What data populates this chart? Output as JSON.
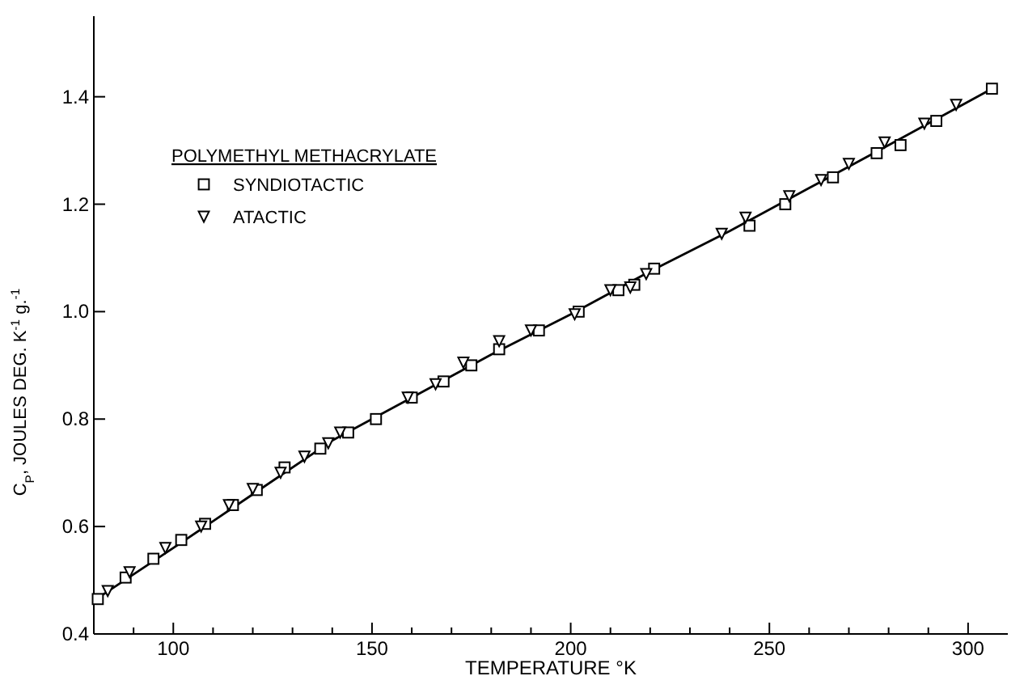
{
  "chart_data": {
    "type": "scatter",
    "xlabel": "TEMPERATURE °K",
    "ylabel": "C$_{P}$, JOULES DEG. K$^{-1}$ g.$^{-1}$",
    "legend_title": "POLYMETHYL METHACRYLATE",
    "legend": "top left",
    "grid": false,
    "xlim": [
      80,
      310
    ],
    "ylim": [
      0.4,
      1.55
    ],
    "xticks": [
      {
        "value": 90,
        "label": null
      },
      100,
      {
        "value": 110,
        "label": null
      },
      {
        "value": 120,
        "label": null
      },
      {
        "value": 130,
        "label": null
      },
      {
        "value": 140,
        "label": null
      },
      150,
      {
        "value": 160,
        "label": null
      },
      {
        "value": 170,
        "label": null
      },
      {
        "value": 180,
        "label": null
      },
      {
        "value": 190,
        "label": null
      },
      200,
      {
        "value": 210,
        "label": null
      },
      {
        "value": 220,
        "label": null
      },
      {
        "value": 230,
        "label": null
      },
      {
        "value": 240,
        "label": null
      },
      250,
      {
        "value": 260,
        "label": null
      },
      {
        "value": 270,
        "label": null
      },
      {
        "value": 280,
        "label": null
      },
      {
        "value": 290,
        "label": null
      },
      300
    ],
    "yticks": [
      {
        "value": 0.4,
        "label": "0.4"
      },
      {
        "value": 0.6,
        "label": "0.6"
      },
      {
        "value": 0.8,
        "label": "0.8"
      },
      {
        "value": 1.0,
        "label": "1.0"
      },
      {
        "value": 1.2,
        "label": "1.2"
      },
      {
        "value": 1.4,
        "label": "1.4"
      }
    ],
    "series": [
      {
        "name": "SYNDIOTACTIC",
        "color": "#000000",
        "marker": "square",
        "x": [
          81,
          88,
          95,
          102,
          108,
          115,
          121,
          128,
          137,
          144,
          151,
          160,
          168,
          175,
          182,
          192,
          202,
          212,
          216,
          221,
          245,
          254,
          266,
          277,
          283,
          292,
          306
        ],
        "values": [
          0.465,
          0.505,
          0.54,
          0.575,
          0.605,
          0.64,
          0.668,
          0.71,
          0.745,
          0.775,
          0.8,
          0.84,
          0.87,
          0.9,
          0.93,
          0.965,
          1.0,
          1.04,
          1.05,
          1.08,
          1.16,
          1.2,
          1.25,
          1.295,
          1.31,
          1.355,
          1.415
        ]
      },
      {
        "name": "ATACTIC",
        "color": "#000000",
        "marker": "triangle",
        "x": [
          83.5,
          89,
          98,
          107,
          114,
          120,
          127,
          133,
          139,
          142,
          159,
          166,
          173,
          182,
          190,
          201,
          210,
          215,
          219,
          238,
          244,
          255,
          263,
          270,
          279,
          289,
          297
        ],
        "values": [
          0.48,
          0.515,
          0.56,
          0.6,
          0.64,
          0.67,
          0.7,
          0.73,
          0.755,
          0.775,
          0.84,
          0.865,
          0.905,
          0.945,
          0.965,
          0.995,
          1.04,
          1.045,
          1.07,
          1.145,
          1.175,
          1.215,
          1.245,
          1.275,
          1.315,
          1.35,
          1.385
        ]
      },
      {
        "type": "line",
        "color": "#000000",
        "marker": "none",
        "line_style": "solid",
        "x": [
          80,
          100,
          120,
          140,
          160,
          180,
          200,
          220,
          240,
          260,
          280,
          306
        ],
        "values": [
          0.462,
          0.56,
          0.66,
          0.76,
          0.84,
          0.92,
          0.995,
          1.075,
          1.15,
          1.23,
          1.31,
          1.415
        ]
      }
    ]
  }
}
